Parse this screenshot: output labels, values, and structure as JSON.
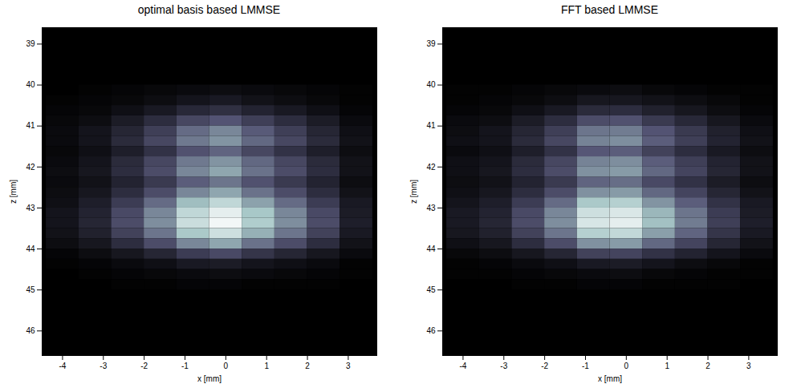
{
  "chart_data": [
    {
      "type": "heatmap",
      "title": "optimal basis based LMMSE",
      "xlabel": "x [mm]",
      "ylabel": "z [mm]",
      "xlim": [
        -4.5,
        3.7
      ],
      "ylim": [
        38.6,
        46.6
      ],
      "xticks": [
        -4,
        -3,
        -2,
        -1,
        0,
        1,
        2,
        3
      ],
      "yticks": [
        39,
        40,
        41,
        42,
        43,
        44,
        45,
        46
      ],
      "clim": [
        0,
        1
      ],
      "x": [
        -4.0,
        -3.2,
        -2.4,
        -1.6,
        -0.8,
        0.0,
        0.8,
        1.6,
        2.4,
        3.2
      ],
      "y": [
        40.125,
        40.375,
        40.625,
        40.875,
        41.125,
        41.375,
        41.625,
        41.875,
        42.125,
        42.375,
        42.625,
        42.875,
        43.125,
        43.375,
        43.625,
        43.875,
        44.125,
        44.375,
        44.625,
        44.875
      ],
      "values": [
        [
          0.0,
          0.01,
          0.02,
          0.03,
          0.04,
          0.05,
          0.04,
          0.03,
          0.02,
          0.01
        ],
        [
          0.01,
          0.02,
          0.03,
          0.05,
          0.08,
          0.1,
          0.07,
          0.05,
          0.03,
          0.01
        ],
        [
          0.02,
          0.03,
          0.06,
          0.1,
          0.16,
          0.19,
          0.14,
          0.1,
          0.06,
          0.02
        ],
        [
          0.03,
          0.05,
          0.11,
          0.18,
          0.28,
          0.33,
          0.25,
          0.18,
          0.11,
          0.04
        ],
        [
          0.04,
          0.08,
          0.15,
          0.25,
          0.4,
          0.48,
          0.35,
          0.25,
          0.15,
          0.06
        ],
        [
          0.04,
          0.08,
          0.17,
          0.28,
          0.44,
          0.52,
          0.39,
          0.28,
          0.17,
          0.07
        ],
        [
          0.03,
          0.06,
          0.12,
          0.2,
          0.32,
          0.38,
          0.28,
          0.2,
          0.12,
          0.05
        ],
        [
          0.04,
          0.08,
          0.17,
          0.28,
          0.44,
          0.52,
          0.39,
          0.28,
          0.17,
          0.07
        ],
        [
          0.05,
          0.09,
          0.18,
          0.3,
          0.48,
          0.57,
          0.42,
          0.3,
          0.18,
          0.07
        ],
        [
          0.04,
          0.07,
          0.14,
          0.23,
          0.36,
          0.43,
          0.32,
          0.23,
          0.14,
          0.05
        ],
        [
          0.05,
          0.09,
          0.18,
          0.3,
          0.48,
          0.57,
          0.42,
          0.3,
          0.18,
          0.07
        ],
        [
          0.06,
          0.12,
          0.24,
          0.4,
          0.64,
          0.76,
          0.56,
          0.4,
          0.24,
          0.1
        ],
        [
          0.08,
          0.14,
          0.29,
          0.48,
          0.76,
          0.9,
          0.67,
          0.48,
          0.29,
          0.11
        ],
        [
          0.08,
          0.15,
          0.3,
          0.5,
          0.8,
          0.95,
          0.7,
          0.5,
          0.3,
          0.12
        ],
        [
          0.07,
          0.13,
          0.26,
          0.43,
          0.68,
          0.81,
          0.6,
          0.43,
          0.26,
          0.1
        ],
        [
          0.05,
          0.09,
          0.18,
          0.3,
          0.48,
          0.57,
          0.42,
          0.3,
          0.18,
          0.07
        ],
        [
          0.02,
          0.05,
          0.09,
          0.15,
          0.24,
          0.29,
          0.21,
          0.15,
          0.09,
          0.04
        ],
        [
          0.01,
          0.02,
          0.04,
          0.06,
          0.1,
          0.11,
          0.08,
          0.06,
          0.04,
          0.01
        ],
        [
          0.0,
          0.01,
          0.02,
          0.03,
          0.04,
          0.05,
          0.04,
          0.03,
          0.02,
          0.01
        ],
        [
          0.0,
          0.0,
          0.01,
          0.01,
          0.02,
          0.02,
          0.01,
          0.01,
          0.01,
          0.0
        ]
      ]
    },
    {
      "type": "heatmap",
      "title": "FFT based LMMSE",
      "xlabel": "x [mm]",
      "ylabel": "z [mm]",
      "xlim": [
        -4.5,
        3.7
      ],
      "ylim": [
        38.6,
        46.6
      ],
      "xticks": [
        -4,
        -3,
        -2,
        -1,
        0,
        1,
        2,
        3
      ],
      "yticks": [
        39,
        40,
        41,
        42,
        43,
        44,
        45,
        46
      ],
      "clim": [
        0,
        1
      ],
      "x": [
        -4.0,
        -3.2,
        -2.4,
        -1.6,
        -0.8,
        0.0,
        0.8,
        1.6,
        2.4,
        3.2
      ],
      "y": [
        40.125,
        40.375,
        40.625,
        40.875,
        41.125,
        41.375,
        41.625,
        41.875,
        42.125,
        42.375,
        42.625,
        42.875,
        43.125,
        43.375,
        43.625,
        43.875,
        44.125,
        44.375,
        44.625,
        44.875
      ],
      "values": [
        [
          0.01,
          0.01,
          0.02,
          0.03,
          0.04,
          0.05,
          0.03,
          0.02,
          0.01,
          0.01
        ],
        [
          0.01,
          0.02,
          0.03,
          0.05,
          0.09,
          0.09,
          0.07,
          0.05,
          0.03,
          0.01
        ],
        [
          0.02,
          0.03,
          0.06,
          0.1,
          0.17,
          0.18,
          0.13,
          0.09,
          0.05,
          0.02
        ],
        [
          0.04,
          0.05,
          0.11,
          0.18,
          0.3,
          0.32,
          0.23,
          0.16,
          0.09,
          0.04
        ],
        [
          0.05,
          0.08,
          0.15,
          0.25,
          0.43,
          0.45,
          0.33,
          0.23,
          0.13,
          0.06
        ],
        [
          0.06,
          0.08,
          0.17,
          0.28,
          0.47,
          0.5,
          0.36,
          0.25,
          0.14,
          0.07
        ],
        [
          0.04,
          0.06,
          0.12,
          0.2,
          0.34,
          0.36,
          0.26,
          0.18,
          0.1,
          0.05
        ],
        [
          0.06,
          0.08,
          0.17,
          0.28,
          0.47,
          0.5,
          0.36,
          0.25,
          0.14,
          0.07
        ],
        [
          0.06,
          0.09,
          0.18,
          0.3,
          0.51,
          0.54,
          0.39,
          0.27,
          0.15,
          0.07
        ],
        [
          0.05,
          0.07,
          0.14,
          0.23,
          0.38,
          0.41,
          0.29,
          0.2,
          0.11,
          0.05
        ],
        [
          0.06,
          0.09,
          0.18,
          0.3,
          0.51,
          0.54,
          0.39,
          0.27,
          0.15,
          0.07
        ],
        [
          0.08,
          0.12,
          0.24,
          0.4,
          0.68,
          0.72,
          0.52,
          0.36,
          0.2,
          0.1
        ],
        [
          0.1,
          0.14,
          0.29,
          0.48,
          0.81,
          0.86,
          0.62,
          0.43,
          0.24,
          0.11
        ],
        [
          0.1,
          0.15,
          0.3,
          0.5,
          0.85,
          0.9,
          0.65,
          0.45,
          0.25,
          0.12
        ],
        [
          0.09,
          0.13,
          0.26,
          0.43,
          0.72,
          0.77,
          0.55,
          0.38,
          0.21,
          0.1
        ],
        [
          0.06,
          0.09,
          0.18,
          0.3,
          0.51,
          0.54,
          0.39,
          0.27,
          0.15,
          0.07
        ],
        [
          0.03,
          0.05,
          0.09,
          0.15,
          0.26,
          0.27,
          0.2,
          0.14,
          0.08,
          0.04
        ],
        [
          0.01,
          0.02,
          0.04,
          0.06,
          0.1,
          0.11,
          0.08,
          0.05,
          0.03,
          0.01
        ],
        [
          0.01,
          0.01,
          0.02,
          0.03,
          0.04,
          0.05,
          0.03,
          0.02,
          0.01,
          0.01
        ],
        [
          0.0,
          0.0,
          0.01,
          0.01,
          0.02,
          0.02,
          0.01,
          0.01,
          0.01,
          0.0
        ]
      ]
    }
  ]
}
